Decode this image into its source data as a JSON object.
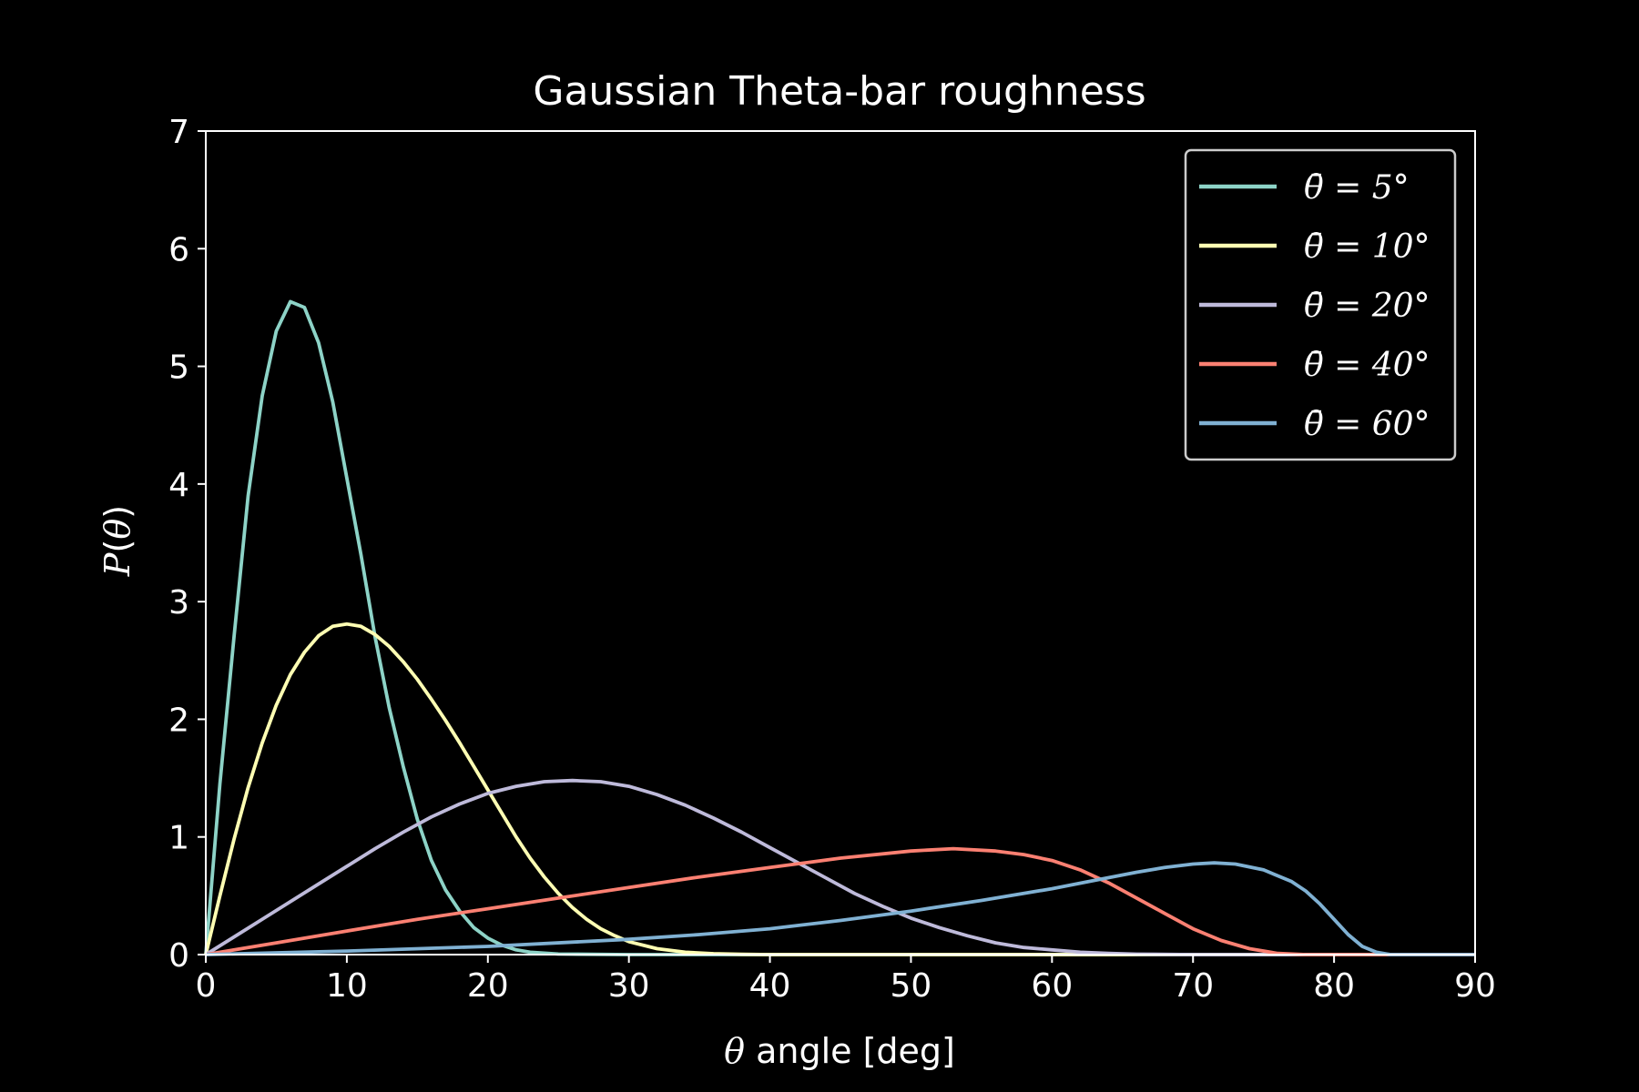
{
  "chart_data": {
    "type": "line",
    "title": "Gaussian Theta-bar roughness",
    "xlabel": "θ angle [deg]",
    "ylabel": "P(θ)",
    "xlim": [
      0,
      90
    ],
    "ylim": [
      0,
      7
    ],
    "xticks": [
      0,
      10,
      20,
      30,
      40,
      50,
      60,
      70,
      80,
      90
    ],
    "yticks": [
      0,
      1,
      2,
      3,
      4,
      5,
      6,
      7
    ],
    "grid": false,
    "legend": "top-right",
    "background": "#000000",
    "series": [
      {
        "name": "θ̄ = 5°",
        "color": "#8dd3c7",
        "points": [
          [
            0,
            0
          ],
          [
            1,
            1.45
          ],
          [
            2,
            2.7
          ],
          [
            3,
            3.9
          ],
          [
            4,
            4.75
          ],
          [
            5,
            5.3
          ],
          [
            6,
            5.55
          ],
          [
            7,
            5.5
          ],
          [
            8,
            5.2
          ],
          [
            9,
            4.7
          ],
          [
            10,
            4.05
          ],
          [
            11,
            3.4
          ],
          [
            12,
            2.7
          ],
          [
            13,
            2.1
          ],
          [
            14,
            1.6
          ],
          [
            15,
            1.15
          ],
          [
            16,
            0.8
          ],
          [
            17,
            0.55
          ],
          [
            18,
            0.37
          ],
          [
            19,
            0.23
          ],
          [
            20,
            0.14
          ],
          [
            21,
            0.08
          ],
          [
            22,
            0.04
          ],
          [
            23,
            0.02
          ],
          [
            25,
            0.005
          ],
          [
            30,
            0
          ],
          [
            90,
            0
          ]
        ]
      },
      {
        "name": "θ̄ = 10°",
        "color": "#ffffb3",
        "points": [
          [
            0,
            0
          ],
          [
            1,
            0.5
          ],
          [
            2,
            0.98
          ],
          [
            3,
            1.42
          ],
          [
            4,
            1.8
          ],
          [
            5,
            2.12
          ],
          [
            6,
            2.38
          ],
          [
            7,
            2.57
          ],
          [
            8,
            2.71
          ],
          [
            9,
            2.79
          ],
          [
            10,
            2.81
          ],
          [
            11,
            2.79
          ],
          [
            12,
            2.72
          ],
          [
            13,
            2.62
          ],
          [
            14,
            2.49
          ],
          [
            15,
            2.34
          ],
          [
            16,
            2.17
          ],
          [
            17,
            1.99
          ],
          [
            18,
            1.8
          ],
          [
            19,
            1.6
          ],
          [
            20,
            1.4
          ],
          [
            21,
            1.2
          ],
          [
            22,
            1.0
          ],
          [
            23,
            0.82
          ],
          [
            24,
            0.66
          ],
          [
            25,
            0.52
          ],
          [
            26,
            0.4
          ],
          [
            27,
            0.3
          ],
          [
            28,
            0.22
          ],
          [
            29,
            0.16
          ],
          [
            30,
            0.11
          ],
          [
            32,
            0.05
          ],
          [
            34,
            0.02
          ],
          [
            36,
            0.008
          ],
          [
            38,
            0.002
          ],
          [
            40,
            0
          ],
          [
            90,
            0
          ]
        ]
      },
      {
        "name": "θ̄ = 20°",
        "color": "#bebada",
        "points": [
          [
            0,
            0
          ],
          [
            4,
            0.3
          ],
          [
            8,
            0.6
          ],
          [
            10,
            0.75
          ],
          [
            12,
            0.9
          ],
          [
            14,
            1.04
          ],
          [
            16,
            1.17
          ],
          [
            18,
            1.28
          ],
          [
            20,
            1.37
          ],
          [
            22,
            1.43
          ],
          [
            24,
            1.47
          ],
          [
            26,
            1.48
          ],
          [
            28,
            1.47
          ],
          [
            30,
            1.43
          ],
          [
            32,
            1.36
          ],
          [
            34,
            1.27
          ],
          [
            36,
            1.16
          ],
          [
            38,
            1.04
          ],
          [
            40,
            0.91
          ],
          [
            42,
            0.78
          ],
          [
            44,
            0.65
          ],
          [
            46,
            0.52
          ],
          [
            48,
            0.41
          ],
          [
            50,
            0.31
          ],
          [
            52,
            0.23
          ],
          [
            54,
            0.16
          ],
          [
            56,
            0.1
          ],
          [
            58,
            0.06
          ],
          [
            60,
            0.04
          ],
          [
            62,
            0.02
          ],
          [
            64,
            0.01
          ],
          [
            66,
            0.004
          ],
          [
            70,
            0
          ],
          [
            90,
            0
          ]
        ]
      },
      {
        "name": "θ̄ = 40°",
        "color": "#fb8072",
        "points": [
          [
            0,
            0
          ],
          [
            5,
            0.1
          ],
          [
            10,
            0.2
          ],
          [
            15,
            0.3
          ],
          [
            20,
            0.39
          ],
          [
            25,
            0.48
          ],
          [
            30,
            0.57
          ],
          [
            35,
            0.66
          ],
          [
            40,
            0.74
          ],
          [
            45,
            0.82
          ],
          [
            50,
            0.88
          ],
          [
            53,
            0.9
          ],
          [
            56,
            0.88
          ],
          [
            58,
            0.85
          ],
          [
            60,
            0.8
          ],
          [
            62,
            0.72
          ],
          [
            64,
            0.61
          ],
          [
            66,
            0.48
          ],
          [
            68,
            0.35
          ],
          [
            70,
            0.22
          ],
          [
            72,
            0.12
          ],
          [
            74,
            0.05
          ],
          [
            76,
            0.01
          ],
          [
            78,
            0
          ],
          [
            90,
            0
          ]
        ]
      },
      {
        "name": "θ̄ = 60°",
        "color": "#80b1d3",
        "points": [
          [
            0,
            0
          ],
          [
            10,
            0.03
          ],
          [
            20,
            0.07
          ],
          [
            30,
            0.13
          ],
          [
            35,
            0.17
          ],
          [
            40,
            0.22
          ],
          [
            45,
            0.29
          ],
          [
            50,
            0.37
          ],
          [
            55,
            0.46
          ],
          [
            60,
            0.56
          ],
          [
            63,
            0.63
          ],
          [
            66,
            0.7
          ],
          [
            68,
            0.74
          ],
          [
            70,
            0.77
          ],
          [
            71.5,
            0.78
          ],
          [
            73,
            0.77
          ],
          [
            75,
            0.72
          ],
          [
            77,
            0.62
          ],
          [
            78,
            0.54
          ],
          [
            79,
            0.43
          ],
          [
            80,
            0.3
          ],
          [
            81,
            0.17
          ],
          [
            82,
            0.07
          ],
          [
            83,
            0.02
          ],
          [
            84,
            0
          ],
          [
            90,
            0
          ]
        ]
      }
    ]
  }
}
